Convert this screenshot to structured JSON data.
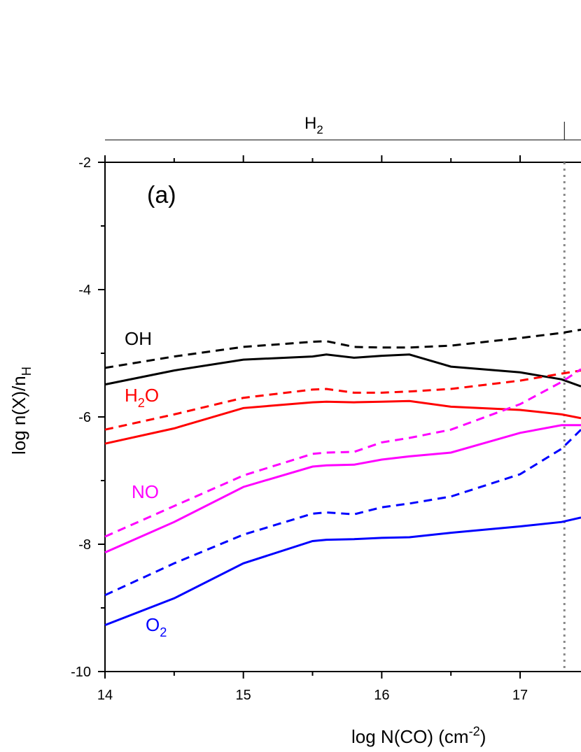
{
  "chart_data": {
    "type": "line",
    "panel_label": "(a)",
    "top_label": {
      "text": "H",
      "sub": "2"
    },
    "x_label": {
      "text": "log N(CO) (cm",
      "sup": "-2",
      "tail": ")"
    },
    "y_label": {
      "text": "log n(X)/n",
      "sub": "H"
    },
    "xlim": [
      14,
      17.44
    ],
    "ylim": [
      -10,
      -2
    ],
    "xticks": [
      14,
      15,
      16,
      17
    ],
    "xminor": [
      14.5,
      15.5,
      16.5
    ],
    "yticks": [
      -10,
      -8,
      -6,
      -4,
      -2
    ],
    "yminor": [
      -9,
      -7,
      -5,
      -3
    ],
    "vline": 17.32,
    "x": [
      14,
      14.5,
      15,
      15.5,
      15.6,
      15.8,
      16,
      16.2,
      16.5,
      17,
      17.3,
      17.44
    ],
    "series": [
      {
        "color": "#000000",
        "dash": false,
        "values": [
          -5.49,
          -5.27,
          -5.1,
          -5.05,
          -5.02,
          -5.07,
          -5.04,
          -5.02,
          -5.21,
          -5.3,
          -5.41,
          -5.52
        ]
      },
      {
        "color": "#000000",
        "dash": true,
        "values": [
          -5.23,
          -5.05,
          -4.9,
          -4.82,
          -4.81,
          -4.9,
          -4.91,
          -4.91,
          -4.88,
          -4.76,
          -4.68,
          -4.63
        ]
      },
      {
        "color": "#ff0000",
        "dash": false,
        "values": [
          -6.42,
          -6.18,
          -5.86,
          -5.77,
          -5.76,
          -5.77,
          -5.76,
          -5.75,
          -5.84,
          -5.89,
          -5.96,
          -6.02
        ]
      },
      {
        "color": "#ff0000",
        "dash": true,
        "values": [
          -6.2,
          -5.96,
          -5.7,
          -5.57,
          -5.56,
          -5.62,
          -5.62,
          -5.6,
          -5.56,
          -5.43,
          -5.32,
          -5.27
        ]
      },
      {
        "color": "#ff00ff",
        "dash": false,
        "values": [
          -8.13,
          -7.65,
          -7.1,
          -6.78,
          -6.76,
          -6.75,
          -6.67,
          -6.62,
          -6.56,
          -6.25,
          -6.13,
          -6.13
        ]
      },
      {
        "color": "#ff00ff",
        "dash": true,
        "values": [
          -7.88,
          -7.4,
          -6.92,
          -6.58,
          -6.56,
          -6.55,
          -6.4,
          -6.33,
          -6.2,
          -5.8,
          -5.45,
          -5.25
        ]
      },
      {
        "color": "#0000ff",
        "dash": true,
        "values": [
          -8.8,
          -8.3,
          -7.85,
          -7.52,
          -7.5,
          -7.53,
          -7.42,
          -7.36,
          -7.25,
          -6.9,
          -6.5,
          -6.2
        ]
      },
      {
        "color": "#0000ff",
        "dash": false,
        "values": [
          -9.27,
          -8.85,
          -8.3,
          -7.95,
          -7.93,
          -7.92,
          -7.9,
          -7.89,
          -7.82,
          -7.72,
          -7.65,
          -7.58
        ]
      }
    ],
    "annotations": [
      {
        "text": "OH",
        "color": "#000000"
      },
      {
        "text": "H",
        "sub": "2",
        "tail": "O",
        "color": "#ff0000"
      },
      {
        "text": "NO",
        "color": "#ff00ff"
      },
      {
        "text": "O",
        "sub": "2",
        "color": "#0000ff"
      }
    ]
  }
}
